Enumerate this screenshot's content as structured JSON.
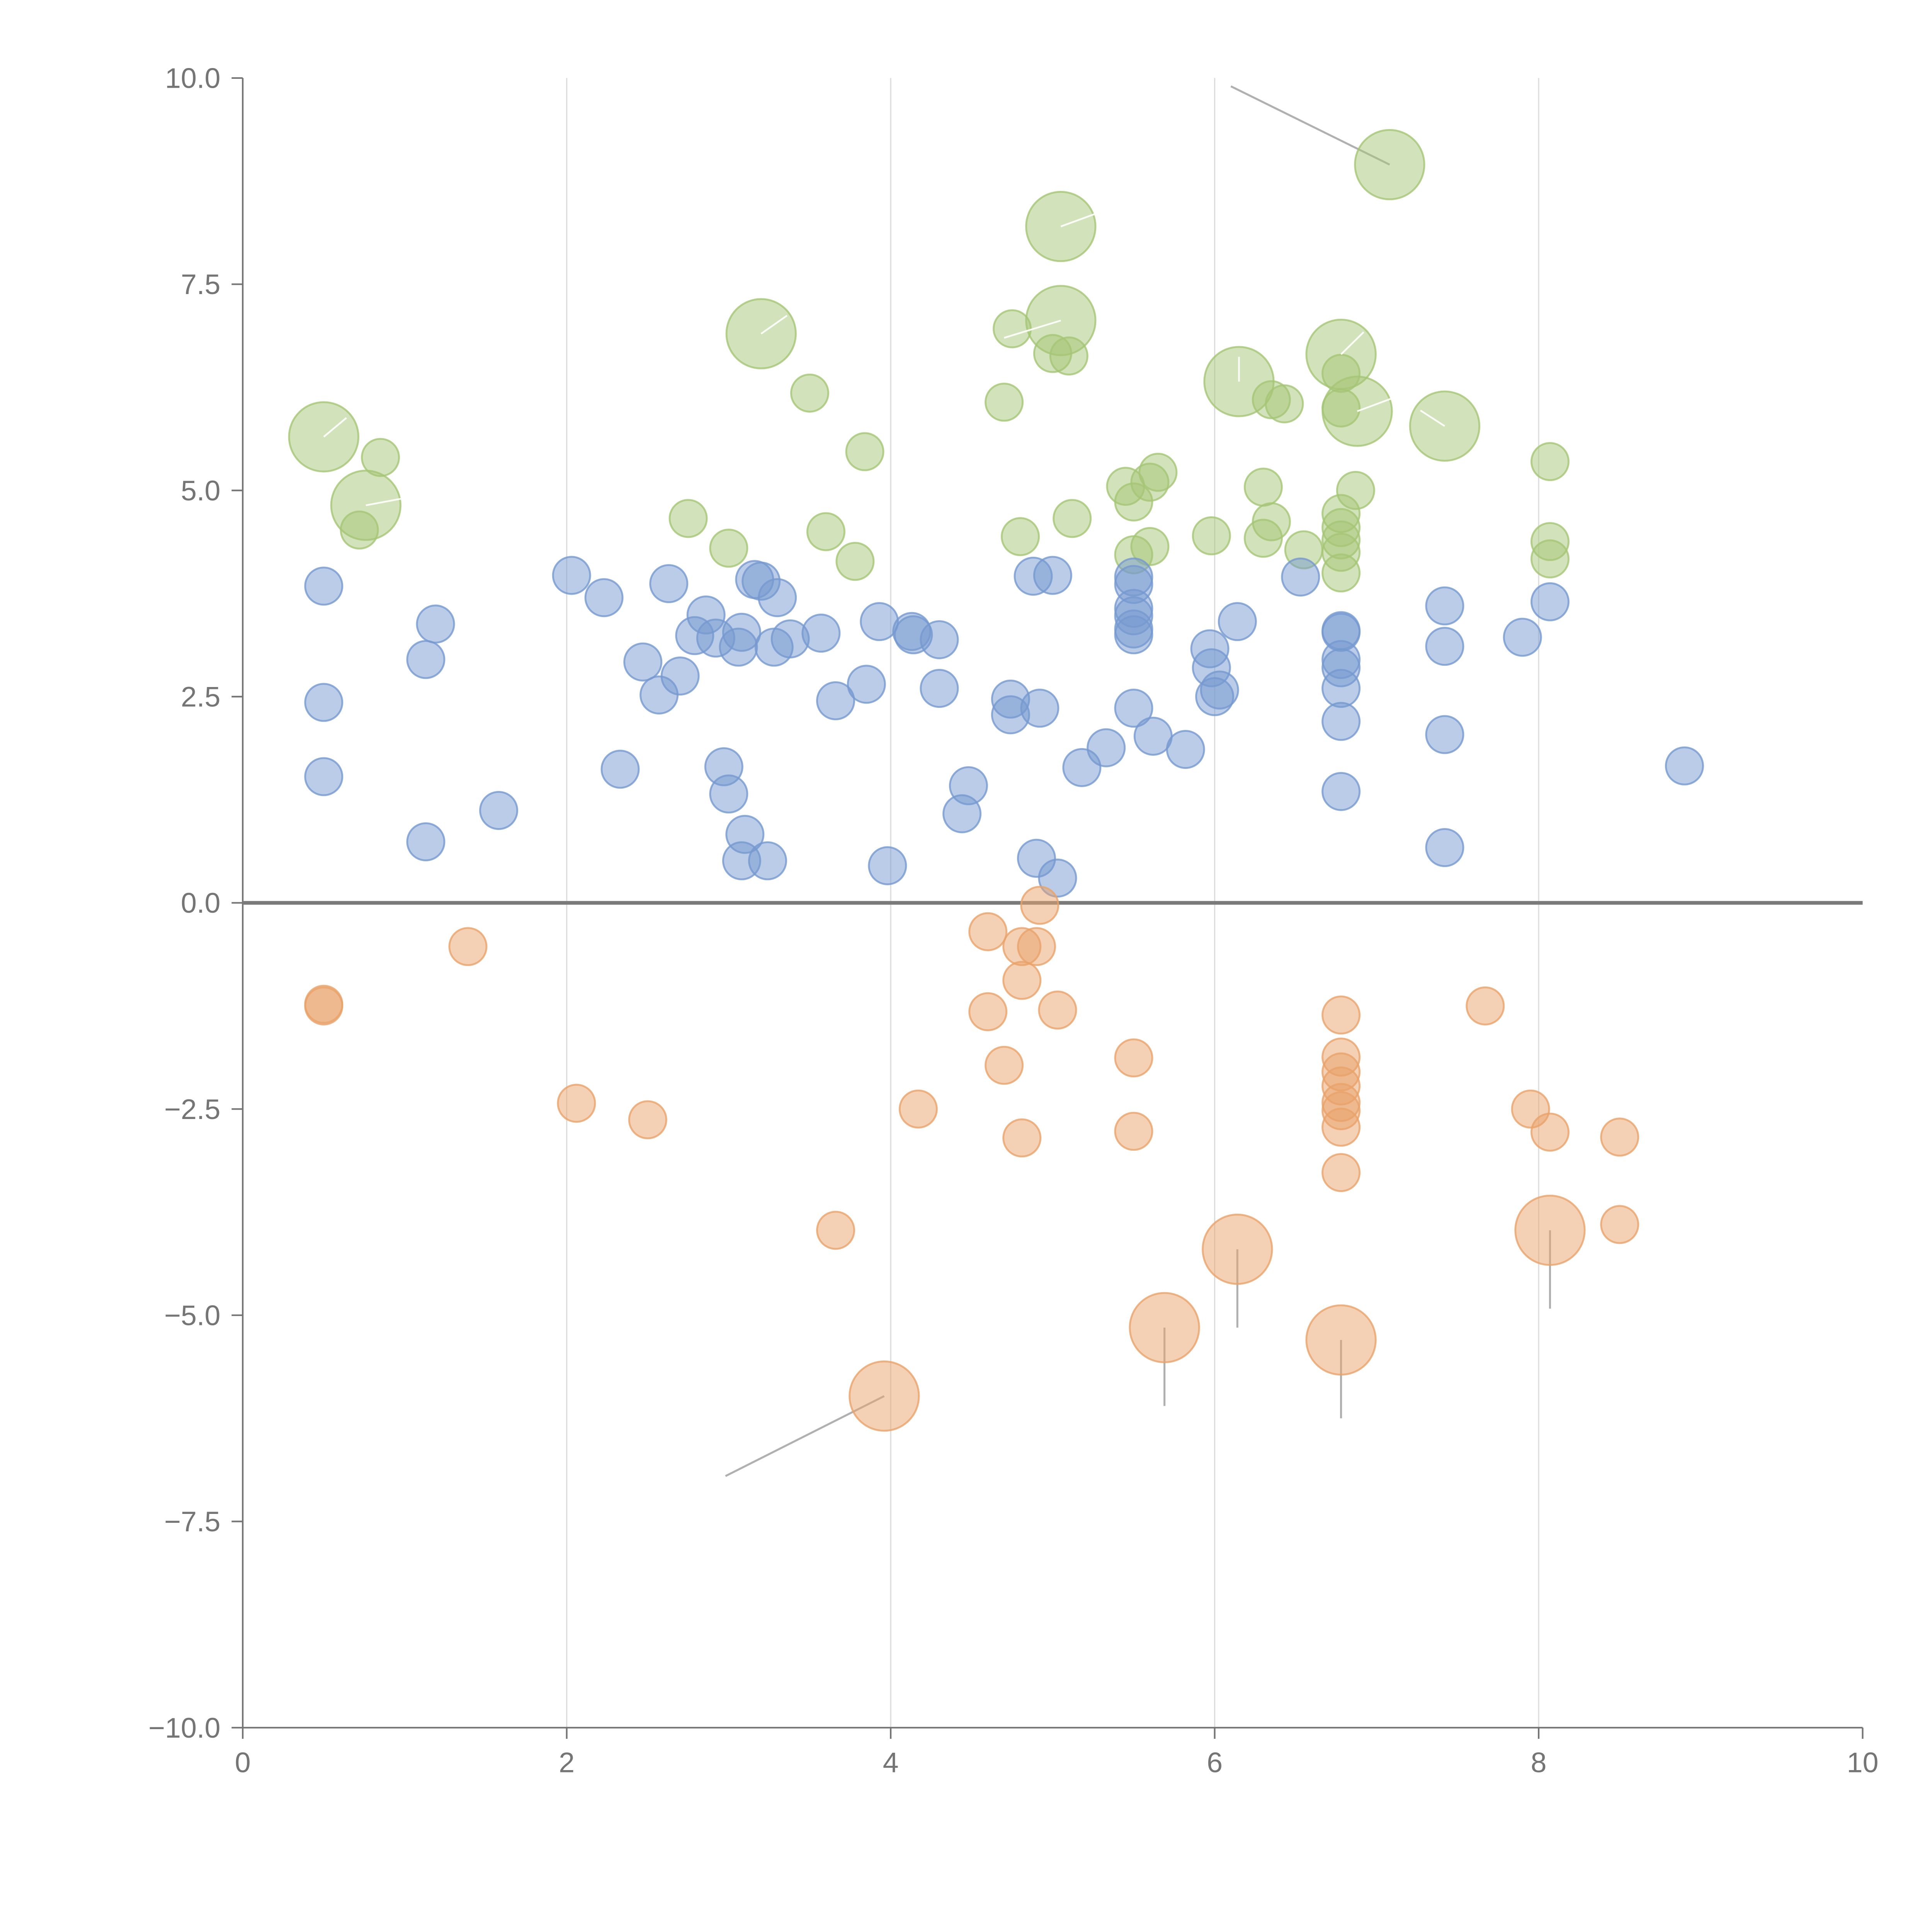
{
  "chart_data": {
    "type": "scatter",
    "title": "",
    "xlabel": "",
    "ylabel": "",
    "xlim": [
      0,
      10
    ],
    "ylim": [
      -10,
      10
    ],
    "grid": "vertical",
    "x_ticks": [
      "0",
      "2",
      "4",
      "6",
      "8",
      "10"
    ],
    "y_ticks": [
      "10.0",
      "7.5",
      "5.0",
      "2.5",
      "0.0",
      "−2.5",
      "−5.0",
      "−7.5",
      "−10.0"
    ],
    "colors": {
      "green": "#a5c576",
      "blue": "#7599cf",
      "orange": "#e9a26a",
      "axis": "#757575",
      "grid": "#dcdcdc",
      "zero_line": "#7a7a7a",
      "leader": "#b0b0b0"
    },
    "series": [
      {
        "name": "green",
        "color": "#a5c576",
        "points": [
          {
            "x": 0.5,
            "y": 5.65,
            "s": 3
          },
          {
            "x": 0.76,
            "y": 4.82,
            "s": 3
          },
          {
            "x": 0.85,
            "y": 5.4,
            "s": 1
          },
          {
            "x": 0.72,
            "y": 4.52,
            "s": 1
          },
          {
            "x": 3.2,
            "y": 6.9,
            "s": 3
          },
          {
            "x": 3.5,
            "y": 6.18,
            "s": 1
          },
          {
            "x": 2.75,
            "y": 4.66,
            "s": 1
          },
          {
            "x": 3.0,
            "y": 4.3,
            "s": 1
          },
          {
            "x": 3.6,
            "y": 4.5,
            "s": 1
          },
          {
            "x": 3.78,
            "y": 4.14,
            "s": 1
          },
          {
            "x": 3.84,
            "y": 5.47,
            "s": 1
          },
          {
            "x": 4.7,
            "y": 6.07,
            "s": 1
          },
          {
            "x": 4.75,
            "y": 6.96,
            "s": 1
          },
          {
            "x": 4.8,
            "y": 4.44,
            "s": 1
          },
          {
            "x": 5.05,
            "y": 8.2,
            "s": 3
          },
          {
            "x": 5.05,
            "y": 7.06,
            "s": 3
          },
          {
            "x": 5.0,
            "y": 6.66,
            "s": 1
          },
          {
            "x": 5.1,
            "y": 6.63,
            "s": 1
          },
          {
            "x": 5.12,
            "y": 4.66,
            "s": 1
          },
          {
            "x": 5.45,
            "y": 5.05,
            "s": 1
          },
          {
            "x": 5.5,
            "y": 4.86,
            "s": 1
          },
          {
            "x": 5.6,
            "y": 5.1,
            "s": 1
          },
          {
            "x": 5.65,
            "y": 5.22,
            "s": 1
          },
          {
            "x": 5.5,
            "y": 4.22,
            "s": 1
          },
          {
            "x": 5.6,
            "y": 4.32,
            "s": 1
          },
          {
            "x": 5.98,
            "y": 4.45,
            "s": 1
          },
          {
            "x": 6.15,
            "y": 6.32,
            "s": 3
          },
          {
            "x": 6.35,
            "y": 6.1,
            "s": 1
          },
          {
            "x": 6.43,
            "y": 6.05,
            "s": 1
          },
          {
            "x": 6.3,
            "y": 5.04,
            "s": 1
          },
          {
            "x": 6.35,
            "y": 4.62,
            "s": 1
          },
          {
            "x": 6.3,
            "y": 4.42,
            "s": 1
          },
          {
            "x": 6.55,
            "y": 4.28,
            "s": 1
          },
          {
            "x": 6.78,
            "y": 6.65,
            "s": 3
          },
          {
            "x": 6.78,
            "y": 6.42,
            "s": 1
          },
          {
            "x": 6.88,
            "y": 5.96,
            "s": 3
          },
          {
            "x": 6.78,
            "y": 6.0,
            "s": 1
          },
          {
            "x": 6.87,
            "y": 5.0,
            "s": 1
          },
          {
            "x": 6.78,
            "y": 4.72,
            "s": 1
          },
          {
            "x": 6.78,
            "y": 4.55,
            "s": 1
          },
          {
            "x": 6.78,
            "y": 4.4,
            "s": 1
          },
          {
            "x": 6.78,
            "y": 4.25,
            "s": 1
          },
          {
            "x": 6.78,
            "y": 4.0,
            "s": 1
          },
          {
            "x": 7.08,
            "y": 8.95,
            "s": 3
          },
          {
            "x": 7.42,
            "y": 5.78,
            "s": 3
          },
          {
            "x": 8.07,
            "y": 5.35,
            "s": 1
          },
          {
            "x": 8.07,
            "y": 4.38,
            "s": 1
          },
          {
            "x": 8.07,
            "y": 4.17,
            "s": 1
          }
        ]
      },
      {
        "name": "blue",
        "color": "#7599cf",
        "points": [
          {
            "x": 0.5,
            "y": 3.84,
            "s": 1
          },
          {
            "x": 0.5,
            "y": 2.43,
            "s": 1
          },
          {
            "x": 0.5,
            "y": 1.53,
            "s": 1
          },
          {
            "x": 1.13,
            "y": 2.95,
            "s": 1
          },
          {
            "x": 1.19,
            "y": 3.38,
            "s": 1
          },
          {
            "x": 1.13,
            "y": 0.74,
            "s": 1
          },
          {
            "x": 1.58,
            "y": 1.12,
            "s": 1
          },
          {
            "x": 2.03,
            "y": 3.97,
            "s": 1
          },
          {
            "x": 2.23,
            "y": 3.7,
            "s": 1
          },
          {
            "x": 2.33,
            "y": 1.62,
            "s": 1
          },
          {
            "x": 2.47,
            "y": 2.92,
            "s": 1
          },
          {
            "x": 2.57,
            "y": 2.52,
            "s": 1
          },
          {
            "x": 2.63,
            "y": 3.87,
            "s": 1
          },
          {
            "x": 2.7,
            "y": 2.75,
            "s": 1
          },
          {
            "x": 2.79,
            "y": 3.24,
            "s": 1
          },
          {
            "x": 2.86,
            "y": 3.49,
            "s": 1
          },
          {
            "x": 2.92,
            "y": 3.21,
            "s": 1
          },
          {
            "x": 2.97,
            "y": 1.65,
            "s": 1
          },
          {
            "x": 3.0,
            "y": 1.32,
            "s": 1
          },
          {
            "x": 3.06,
            "y": 3.1,
            "s": 1
          },
          {
            "x": 3.08,
            "y": 3.28,
            "s": 1
          },
          {
            "x": 3.1,
            "y": 0.83,
            "s": 1
          },
          {
            "x": 3.08,
            "y": 0.51,
            "s": 1
          },
          {
            "x": 3.16,
            "y": 3.92,
            "s": 1
          },
          {
            "x": 3.2,
            "y": 3.9,
            "s": 1
          },
          {
            "x": 3.24,
            "y": 0.51,
            "s": 1
          },
          {
            "x": 3.28,
            "y": 3.1,
            "s": 1
          },
          {
            "x": 3.3,
            "y": 3.7,
            "s": 1
          },
          {
            "x": 3.38,
            "y": 3.2,
            "s": 1
          },
          {
            "x": 3.57,
            "y": 3.27,
            "s": 1
          },
          {
            "x": 3.66,
            "y": 2.45,
            "s": 1
          },
          {
            "x": 3.85,
            "y": 2.65,
            "s": 1
          },
          {
            "x": 3.93,
            "y": 3.41,
            "s": 1
          },
          {
            "x": 3.98,
            "y": 0.45,
            "s": 1
          },
          {
            "x": 4.13,
            "y": 3.29,
            "s": 1
          },
          {
            "x": 4.14,
            "y": 3.25,
            "s": 1
          },
          {
            "x": 4.3,
            "y": 3.19,
            "s": 1
          },
          {
            "x": 4.3,
            "y": 2.6,
            "s": 1
          },
          {
            "x": 4.44,
            "y": 1.08,
            "s": 1
          },
          {
            "x": 4.48,
            "y": 1.42,
            "s": 1
          },
          {
            "x": 4.74,
            "y": 2.47,
            "s": 1
          },
          {
            "x": 4.74,
            "y": 2.28,
            "s": 1
          },
          {
            "x": 4.88,
            "y": 3.96,
            "s": 1
          },
          {
            "x": 4.92,
            "y": 2.36,
            "s": 1
          },
          {
            "x": 4.9,
            "y": 0.54,
            "s": 1
          },
          {
            "x": 5.0,
            "y": 3.97,
            "s": 1
          },
          {
            "x": 5.03,
            "y": 0.3,
            "s": 1
          },
          {
            "x": 5.18,
            "y": 1.64,
            "s": 1
          },
          {
            "x": 5.33,
            "y": 1.88,
            "s": 1
          },
          {
            "x": 5.5,
            "y": 3.95,
            "s": 1
          },
          {
            "x": 5.5,
            "y": 3.86,
            "s": 1
          },
          {
            "x": 5.5,
            "y": 3.57,
            "s": 1
          },
          {
            "x": 5.5,
            "y": 3.48,
            "s": 1
          },
          {
            "x": 5.5,
            "y": 3.32,
            "s": 1
          },
          {
            "x": 5.5,
            "y": 3.25,
            "s": 1
          },
          {
            "x": 5.5,
            "y": 2.36,
            "s": 1
          },
          {
            "x": 5.62,
            "y": 2.02,
            "s": 1
          },
          {
            "x": 5.82,
            "y": 1.86,
            "s": 1
          },
          {
            "x": 5.97,
            "y": 3.08,
            "s": 1
          },
          {
            "x": 5.98,
            "y": 2.85,
            "s": 1
          },
          {
            "x": 6.03,
            "y": 2.58,
            "s": 1
          },
          {
            "x": 6.0,
            "y": 2.5,
            "s": 1
          },
          {
            "x": 6.14,
            "y": 3.41,
            "s": 1
          },
          {
            "x": 6.53,
            "y": 3.95,
            "s": 1
          },
          {
            "x": 6.78,
            "y": 3.3,
            "s": 1
          },
          {
            "x": 6.78,
            "y": 3.28,
            "s": 1
          },
          {
            "x": 6.78,
            "y": 2.95,
            "s": 1
          },
          {
            "x": 6.78,
            "y": 2.85,
            "s": 1
          },
          {
            "x": 6.78,
            "y": 2.6,
            "s": 1
          },
          {
            "x": 6.78,
            "y": 2.2,
            "s": 1
          },
          {
            "x": 6.78,
            "y": 1.35,
            "s": 1
          },
          {
            "x": 7.42,
            "y": 3.6,
            "s": 1
          },
          {
            "x": 7.42,
            "y": 3.11,
            "s": 1
          },
          {
            "x": 7.42,
            "y": 2.04,
            "s": 1
          },
          {
            "x": 7.42,
            "y": 0.67,
            "s": 1
          },
          {
            "x": 7.9,
            "y": 3.22,
            "s": 1
          },
          {
            "x": 8.07,
            "y": 3.65,
            "s": 1
          },
          {
            "x": 8.9,
            "y": 1.66,
            "s": 1
          }
        ]
      },
      {
        "name": "orange",
        "color": "#e9a26a",
        "points": [
          {
            "x": 0.5,
            "y": -1.23,
            "s": 1
          },
          {
            "x": 0.5,
            "y": -1.25,
            "s": 1
          },
          {
            "x": 1.39,
            "y": -0.53,
            "s": 1
          },
          {
            "x": 2.06,
            "y": -2.43,
            "s": 1
          },
          {
            "x": 2.5,
            "y": -2.63,
            "s": 1
          },
          {
            "x": 3.66,
            "y": -3.97,
            "s": 1
          },
          {
            "x": 3.96,
            "y": -5.98,
            "s": 3
          },
          {
            "x": 4.17,
            "y": -2.5,
            "s": 1
          },
          {
            "x": 4.6,
            "y": -0.35,
            "s": 1
          },
          {
            "x": 4.6,
            "y": -1.32,
            "s": 1
          },
          {
            "x": 4.7,
            "y": -1.97,
            "s": 1
          },
          {
            "x": 4.81,
            "y": -0.53,
            "s": 1
          },
          {
            "x": 4.81,
            "y": -0.94,
            "s": 1
          },
          {
            "x": 4.81,
            "y": -2.85,
            "s": 1
          },
          {
            "x": 4.9,
            "y": -0.53,
            "s": 1
          },
          {
            "x": 4.92,
            "y": -0.03,
            "s": 1
          },
          {
            "x": 5.03,
            "y": -1.3,
            "s": 1
          },
          {
            "x": 5.5,
            "y": -1.88,
            "s": 1
          },
          {
            "x": 5.5,
            "y": -2.77,
            "s": 1
          },
          {
            "x": 5.69,
            "y": -5.15,
            "s": 3
          },
          {
            "x": 6.14,
            "y": -4.2,
            "s": 3
          },
          {
            "x": 6.78,
            "y": -1.36,
            "s": 1
          },
          {
            "x": 6.78,
            "y": -1.87,
            "s": 1
          },
          {
            "x": 6.78,
            "y": -2.05,
            "s": 1
          },
          {
            "x": 6.78,
            "y": -2.22,
            "s": 1
          },
          {
            "x": 6.78,
            "y": -2.42,
            "s": 1
          },
          {
            "x": 6.78,
            "y": -2.52,
            "s": 1
          },
          {
            "x": 6.78,
            "y": -2.72,
            "s": 1
          },
          {
            "x": 6.78,
            "y": -3.27,
            "s": 1
          },
          {
            "x": 6.78,
            "y": -5.3,
            "s": 3
          },
          {
            "x": 7.67,
            "y": -1.25,
            "s": 1
          },
          {
            "x": 7.95,
            "y": -2.5,
            "s": 1
          },
          {
            "x": 8.07,
            "y": -2.78,
            "s": 1
          },
          {
            "x": 8.07,
            "y": -3.97,
            "s": 3
          },
          {
            "x": 8.5,
            "y": -2.84,
            "s": 1
          },
          {
            "x": 8.5,
            "y": -3.9,
            "s": 1
          }
        ]
      }
    ],
    "leader_lines": [
      {
        "x1": 7.08,
        "y1": 8.95,
        "x2": 6.1,
        "y2": 9.9,
        "color": "#b0b0b0"
      },
      {
        "x1": 3.96,
        "y1": -5.98,
        "x2": 2.98,
        "y2": -6.95,
        "color": "#b0b0b0"
      },
      {
        "x1": 5.69,
        "y1": -5.15,
        "x2": 5.69,
        "y2": -6.1,
        "color": "#b0b0b0"
      },
      {
        "x1": 6.14,
        "y1": -4.2,
        "x2": 6.14,
        "y2": -5.15,
        "color": "#b0b0b0"
      },
      {
        "x1": 6.78,
        "y1": -5.3,
        "x2": 6.78,
        "y2": -6.25,
        "color": "#b0b0b0"
      },
      {
        "x1": 8.07,
        "y1": -3.97,
        "x2": 8.07,
        "y2": -4.92,
        "color": "#b0b0b0"
      },
      {
        "x1": 5.05,
        "y1": 8.2,
        "x2": 5.3,
        "y2": 8.38,
        "color": "#ffffff"
      },
      {
        "x1": 5.05,
        "y1": 7.06,
        "x2": 4.7,
        "y2": 6.85,
        "color": "#ffffff"
      },
      {
        "x1": 3.2,
        "y1": 6.9,
        "x2": 3.36,
        "y2": 7.12,
        "color": "#ffffff"
      },
      {
        "x1": 0.5,
        "y1": 5.65,
        "x2": 0.64,
        "y2": 5.88,
        "color": "#ffffff"
      },
      {
        "x1": 0.76,
        "y1": 4.82,
        "x2": 0.98,
        "y2": 4.9,
        "color": "#ffffff"
      },
      {
        "x1": 6.15,
        "y1": 6.32,
        "x2": 6.15,
        "y2": 6.62,
        "color": "#ffffff"
      },
      {
        "x1": 6.78,
        "y1": 6.65,
        "x2": 6.92,
        "y2": 6.92,
        "color": "#ffffff"
      },
      {
        "x1": 6.88,
        "y1": 5.96,
        "x2": 7.1,
        "y2": 6.12,
        "color": "#ffffff"
      },
      {
        "x1": 7.42,
        "y1": 5.78,
        "x2": 7.27,
        "y2": 5.97,
        "color": "#ffffff"
      }
    ]
  }
}
